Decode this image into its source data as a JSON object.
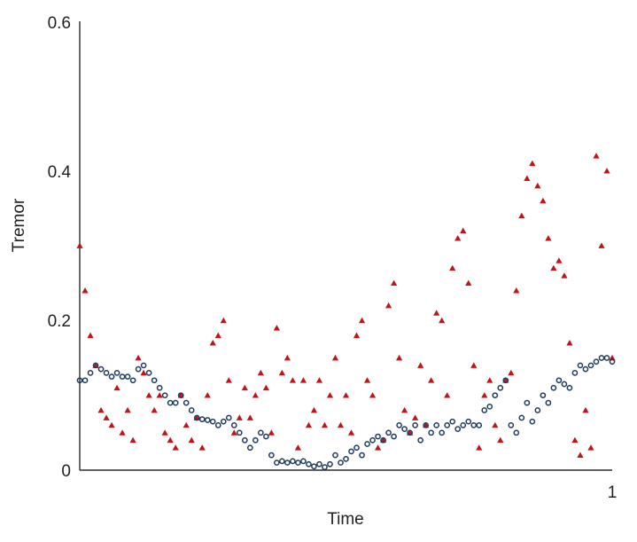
{
  "chart_data": {
    "type": "scatter",
    "title": "",
    "xlabel": "Time",
    "ylabel": "Tremor",
    "xlim": [
      0,
      1
    ],
    "ylim": [
      0,
      0.6
    ],
    "x_ticks": [
      "1"
    ],
    "y_ticks": [
      "0",
      "0.2",
      "0.4",
      "0.6"
    ],
    "grid": false,
    "legend": "none",
    "series": [
      {
        "marker": "triangle",
        "color": "#c0141c",
        "x": [
          0.0,
          0.01,
          0.02,
          0.03,
          0.04,
          0.05,
          0.06,
          0.07,
          0.08,
          0.09,
          0.1,
          0.11,
          0.12,
          0.13,
          0.14,
          0.15,
          0.16,
          0.17,
          0.18,
          0.19,
          0.2,
          0.21,
          0.22,
          0.23,
          0.24,
          0.25,
          0.26,
          0.27,
          0.28,
          0.29,
          0.3,
          0.31,
          0.32,
          0.33,
          0.34,
          0.35,
          0.36,
          0.37,
          0.38,
          0.39,
          0.4,
          0.41,
          0.42,
          0.43,
          0.44,
          0.45,
          0.46,
          0.47,
          0.48,
          0.49,
          0.5,
          0.51,
          0.52,
          0.53,
          0.54,
          0.55,
          0.56,
          0.57,
          0.58,
          0.59,
          0.6,
          0.61,
          0.62,
          0.63,
          0.64,
          0.65,
          0.66,
          0.67,
          0.68,
          0.69,
          0.7,
          0.71,
          0.72,
          0.73,
          0.74,
          0.75,
          0.76,
          0.77,
          0.78,
          0.79,
          0.8,
          0.81,
          0.82,
          0.83,
          0.84,
          0.85,
          0.86,
          0.87,
          0.88,
          0.89,
          0.9,
          0.91,
          0.92,
          0.93,
          0.94,
          0.95,
          0.96,
          0.97,
          0.98,
          0.99,
          1.0
        ],
        "y": [
          0.3,
          0.24,
          0.18,
          0.14,
          0.08,
          0.07,
          0.06,
          0.11,
          0.05,
          0.08,
          0.04,
          0.15,
          0.13,
          0.1,
          0.08,
          0.1,
          0.05,
          0.04,
          0.03,
          0.1,
          0.06,
          0.04,
          0.07,
          0.03,
          0.1,
          0.17,
          0.18,
          0.2,
          0.12,
          0.05,
          0.07,
          0.11,
          0.07,
          0.1,
          0.13,
          0.11,
          0.05,
          0.19,
          0.13,
          0.15,
          0.12,
          0.03,
          0.12,
          0.06,
          0.08,
          0.12,
          0.06,
          0.1,
          0.15,
          0.06,
          0.1,
          0.05,
          0.18,
          0.2,
          0.12,
          0.1,
          0.03,
          0.04,
          0.22,
          0.25,
          0.15,
          0.08,
          0.05,
          0.07,
          0.14,
          0.06,
          0.12,
          0.21,
          0.2,
          0.1,
          0.27,
          0.31,
          0.32,
          0.25,
          0.14,
          0.03,
          0.1,
          0.12,
          0.06,
          0.04,
          0.12,
          0.13,
          0.24,
          0.34,
          0.39,
          0.41,
          0.38,
          0.36,
          0.31,
          0.27,
          0.28,
          0.26,
          0.17,
          0.04,
          0.02,
          0.08,
          0.03,
          0.42,
          0.3,
          0.4,
          0.15
        ]
      },
      {
        "marker": "circle",
        "color": "#1f3b5c",
        "x": [
          0.0,
          0.01,
          0.02,
          0.03,
          0.04,
          0.05,
          0.06,
          0.07,
          0.08,
          0.09,
          0.1,
          0.11,
          0.12,
          0.13,
          0.14,
          0.15,
          0.16,
          0.17,
          0.18,
          0.19,
          0.2,
          0.21,
          0.22,
          0.23,
          0.24,
          0.25,
          0.26,
          0.27,
          0.28,
          0.29,
          0.3,
          0.31,
          0.32,
          0.33,
          0.34,
          0.35,
          0.36,
          0.37,
          0.38,
          0.39,
          0.4,
          0.41,
          0.42,
          0.43,
          0.44,
          0.45,
          0.46,
          0.47,
          0.48,
          0.49,
          0.5,
          0.51,
          0.52,
          0.53,
          0.54,
          0.55,
          0.56,
          0.57,
          0.58,
          0.59,
          0.6,
          0.61,
          0.62,
          0.63,
          0.64,
          0.65,
          0.66,
          0.67,
          0.68,
          0.69,
          0.7,
          0.71,
          0.72,
          0.73,
          0.74,
          0.75,
          0.76,
          0.77,
          0.78,
          0.79,
          0.8,
          0.81,
          0.82,
          0.83,
          0.84,
          0.85,
          0.86,
          0.87,
          0.88,
          0.89,
          0.9,
          0.91,
          0.92,
          0.93,
          0.94,
          0.95,
          0.96,
          0.97,
          0.98,
          0.99,
          1.0
        ],
        "y": [
          0.12,
          0.12,
          0.13,
          0.14,
          0.135,
          0.13,
          0.125,
          0.13,
          0.125,
          0.125,
          0.12,
          0.135,
          0.14,
          0.13,
          0.12,
          0.11,
          0.1,
          0.09,
          0.09,
          0.1,
          0.09,
          0.08,
          0.07,
          0.068,
          0.067,
          0.065,
          0.06,
          0.065,
          0.07,
          0.06,
          0.05,
          0.04,
          0.03,
          0.04,
          0.05,
          0.045,
          0.02,
          0.01,
          0.012,
          0.01,
          0.012,
          0.01,
          0.012,
          0.008,
          0.005,
          0.008,
          0.004,
          0.008,
          0.02,
          0.01,
          0.015,
          0.025,
          0.03,
          0.02,
          0.035,
          0.04,
          0.045,
          0.04,
          0.05,
          0.045,
          0.06,
          0.055,
          0.05,
          0.06,
          0.04,
          0.06,
          0.05,
          0.06,
          0.05,
          0.06,
          0.065,
          0.055,
          0.06,
          0.065,
          0.06,
          0.06,
          0.08,
          0.085,
          0.1,
          0.11,
          0.12,
          0.06,
          0.05,
          0.07,
          0.09,
          0.065,
          0.08,
          0.1,
          0.09,
          0.11,
          0.12,
          0.115,
          0.11,
          0.13,
          0.14,
          0.135,
          0.14,
          0.145,
          0.15,
          0.15,
          0.145
        ]
      }
    ]
  }
}
